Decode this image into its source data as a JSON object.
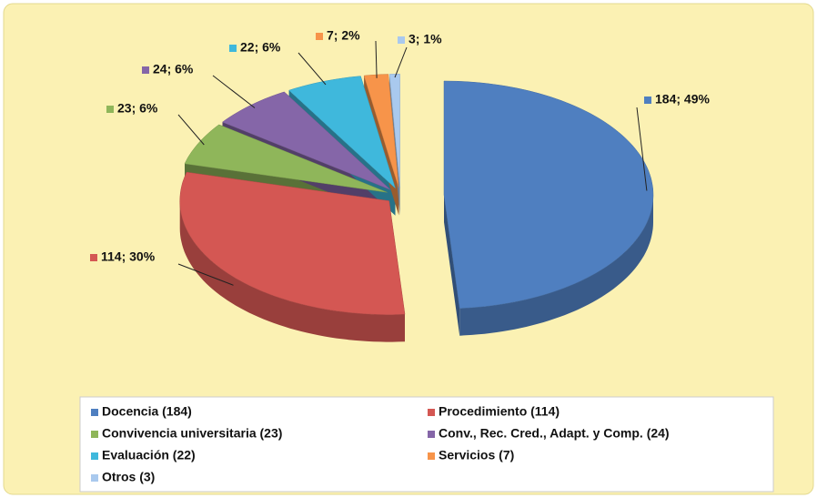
{
  "chart_data": {
    "type": "pie",
    "categories": [
      "Docencia (184)",
      "Procedimiento (114)",
      "Convivencia universitaria (23)",
      "Conv., Rec. Cred., Adapt. y Comp. (24)",
      "Evaluación (22)",
      "Servicios (7)",
      "Otros (3)"
    ],
    "values": [
      184,
      114,
      23,
      24,
      22,
      7,
      3
    ],
    "value_labels": [
      "184; 49%",
      "114; 30%",
      "23; 6%",
      "24; 6%",
      "22; 6%",
      "7; 2%",
      "3; 1%"
    ],
    "colors": [
      "#4f7fc0",
      "#d45753",
      "#8fb65a",
      "#8566a8",
      "#3fb8dc",
      "#f7944a",
      "#a9c9ee"
    ]
  }
}
